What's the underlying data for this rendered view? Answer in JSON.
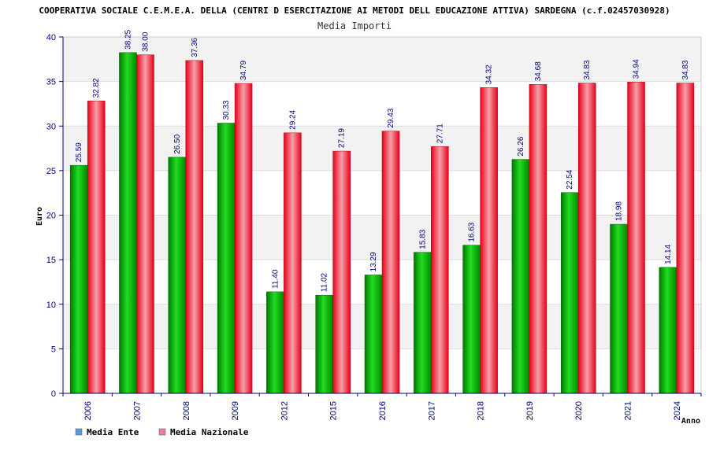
{
  "chart_data": {
    "type": "bar",
    "title": "COOPERATIVA SOCIALE C.E.M.E.A. DELLA (CENTRI D ESERCITAZIONE AI METODI DELL EDUCAZIONE ATTIVA) SARDEGNA (c.f.02457030928)",
    "subtitle": "Media Importi",
    "xlabel": "Anno",
    "ylabel": "Euro",
    "ylim": [
      0,
      40
    ],
    "yticks": [
      0,
      5,
      10,
      15,
      20,
      25,
      30,
      35,
      40
    ],
    "grid": true,
    "legend_position": "bottom-left",
    "categories": [
      "2006",
      "2007",
      "2008",
      "2009",
      "2012",
      "2015",
      "2016",
      "2017",
      "2018",
      "2019",
      "2020",
      "2021",
      "2024"
    ],
    "series": [
      {
        "name": "Media Ente",
        "color": "#00b000",
        "legend_color": "#5b9bd5",
        "values": [
          25.59,
          38.25,
          26.5,
          30.33,
          11.4,
          11.02,
          13.29,
          15.83,
          16.63,
          26.26,
          22.54,
          18.98,
          14.14
        ],
        "labels": [
          "25.59",
          "38.25",
          "26.50",
          "30.33",
          "11.40",
          "11.02",
          "13.29",
          "15.83",
          "16.63",
          "26.26",
          "22.54",
          "18.98",
          "14.14"
        ]
      },
      {
        "name": "Media Nazionale",
        "color": "#e8141c",
        "legend_color": "#e87fa8",
        "values": [
          32.82,
          38.0,
          37.36,
          34.79,
          29.24,
          27.19,
          29.43,
          27.71,
          34.32,
          34.68,
          34.83,
          34.94,
          34.83
        ],
        "labels": [
          "32.82",
          "38.00",
          "37.36",
          "34.79",
          "29.24",
          "27.19",
          "29.43",
          "27.71",
          "34.32",
          "34.68",
          "34.83",
          "34.94",
          "34.83"
        ]
      }
    ]
  }
}
